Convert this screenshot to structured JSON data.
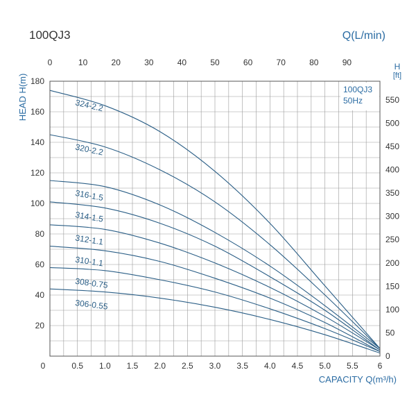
{
  "model_title": "100QJ3",
  "top_axis_title": "Q(L/min)",
  "right_axis_title_line1": "H",
  "right_axis_title_line2": "[ft]",
  "left_axis_title": "HEAD H(m)",
  "bottom_axis_title": "CAPACITY Q(m³/h)",
  "legend_box": {
    "line1": "100QJ3",
    "line2": "50Hz"
  },
  "colors": {
    "curve": "#2a5e86",
    "grid": "#9a9a9a",
    "text": "#333333",
    "accent": "#2b6ca3"
  },
  "chart_data": {
    "type": "line",
    "title": "100QJ3",
    "xlabel": "CAPACITY Q(m³/h)",
    "ylabel": "HEAD H(m)",
    "secondary_xlabel": "Q(L/min)",
    "secondary_ylabel": "H [ft]",
    "xlim": [
      0,
      6
    ],
    "ylim": [
      0,
      180
    ],
    "secondary_xlim": [
      0,
      100
    ],
    "secondary_ylim": [
      0,
      590
    ],
    "x_ticks": [
      "0",
      "0.5",
      "1.0",
      "1.5",
      "2.0",
      "2.5",
      "3.0",
      "3.5",
      "4.0",
      "4.5",
      "5.0",
      "5.5",
      "6"
    ],
    "x_tick_values": [
      0,
      0.5,
      1.0,
      1.5,
      2.0,
      2.5,
      3.0,
      3.5,
      4.0,
      4.5,
      5.0,
      5.5,
      6.0
    ],
    "y_ticks": [
      "20",
      "40",
      "60",
      "80",
      "100",
      "120",
      "140",
      "160",
      "180"
    ],
    "y_tick_values": [
      20,
      40,
      60,
      80,
      100,
      120,
      140,
      160,
      180
    ],
    "top_ticks": [
      "0",
      "10",
      "20",
      "30",
      "40",
      "50",
      "60",
      "70",
      "80",
      "90"
    ],
    "top_tick_values": [
      0,
      10,
      20,
      30,
      40,
      50,
      60,
      70,
      80,
      90
    ],
    "right_ticks": [
      "0",
      "50",
      "100",
      "150",
      "200",
      "250",
      "300",
      "350",
      "400",
      "450",
      "500",
      "550"
    ],
    "right_tick_values": [
      0,
      50,
      100,
      150,
      200,
      250,
      300,
      350,
      400,
      450,
      500,
      550
    ],
    "grid": true,
    "series": [
      {
        "name": "324-2.2",
        "x": [
          0,
          1.0,
          2.0,
          3.0,
          4.0,
          5.0,
          6.0
        ],
        "y": [
          174,
          164,
          147,
          121,
          87,
          46,
          5
        ]
      },
      {
        "name": "320-2.2",
        "x": [
          0,
          1.0,
          2.0,
          3.0,
          4.0,
          5.0,
          6.0
        ],
        "y": [
          145,
          137,
          122,
          101,
          73,
          40,
          5
        ]
      },
      {
        "name": "316-1.5",
        "x": [
          0,
          1.0,
          2.0,
          3.0,
          4.0,
          5.0,
          6.0
        ],
        "y": [
          115,
          111,
          99,
          81,
          59,
          33,
          5
        ]
      },
      {
        "name": "314-1.5",
        "x": [
          0,
          1.0,
          2.0,
          3.0,
          4.0,
          5.0,
          6.0
        ],
        "y": [
          101,
          97,
          87,
          72,
          52,
          30,
          4
        ]
      },
      {
        "name": "312-1.1",
        "x": [
          0,
          1.0,
          2.0,
          3.0,
          4.0,
          5.0,
          6.0
        ],
        "y": [
          86,
          83,
          74,
          61,
          45,
          26,
          4
        ]
      },
      {
        "name": "310-1.1",
        "x": [
          0,
          1.0,
          2.0,
          3.0,
          4.0,
          5.0,
          6.0
        ],
        "y": [
          72,
          69,
          62,
          51,
          38,
          22,
          3
        ]
      },
      {
        "name": "308-0.75",
        "x": [
          0,
          1.0,
          2.0,
          3.0,
          4.0,
          5.0,
          6.0
        ],
        "y": [
          58,
          56,
          50,
          42,
          31,
          18,
          3
        ]
      },
      {
        "name": "306-0.55",
        "x": [
          0,
          1.0,
          2.0,
          3.0,
          4.0,
          5.0,
          6.0
        ],
        "y": [
          44,
          42,
          38,
          32,
          24,
          14,
          2
        ]
      }
    ]
  }
}
